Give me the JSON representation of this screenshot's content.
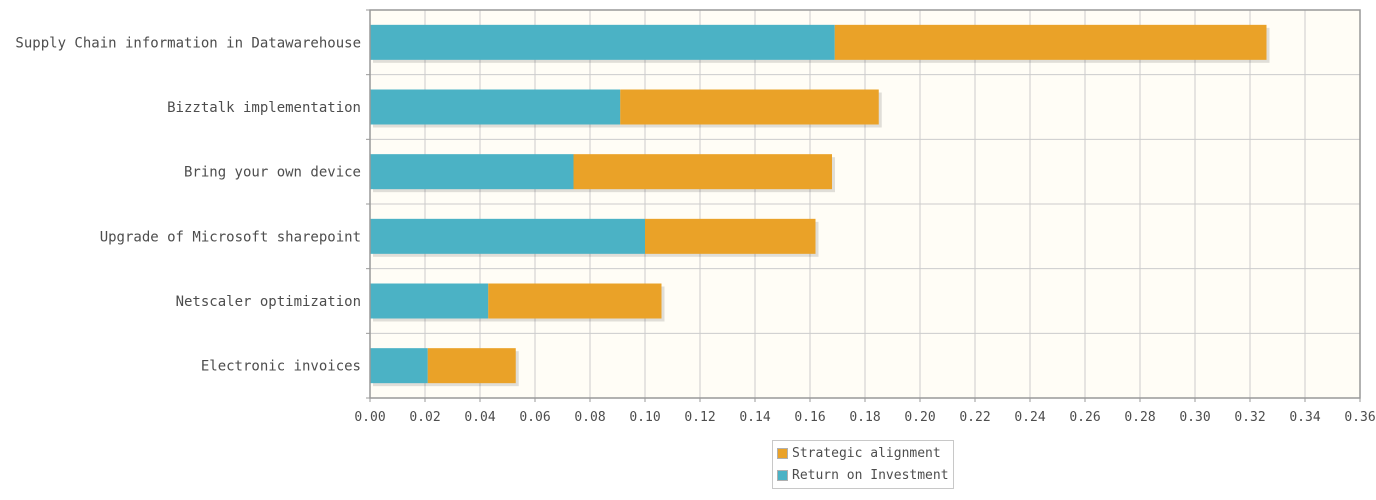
{
  "chart_data": {
    "type": "bar",
    "orientation": "horizontal",
    "stacked": true,
    "categories": [
      "Supply Chain information in Datawarehouse",
      "Bizztalk implementation",
      "Bring your own device",
      "Upgrade of Microsoft sharepoint",
      "Netscaler optimization",
      "Electronic invoices"
    ],
    "series": [
      {
        "name": "Return on Investment",
        "color": "#4bb2c5",
        "values": [
          0.169,
          0.091,
          0.074,
          0.1,
          0.043,
          0.021
        ]
      },
      {
        "name": "Strategic alignment",
        "color": "#eaa228",
        "values": [
          0.157,
          0.094,
          0.094,
          0.062,
          0.063,
          0.032
        ]
      }
    ],
    "xlim": [
      0,
      0.36
    ],
    "x_ticks": [
      "0.00",
      "0.02",
      "0.04",
      "0.06",
      "0.08",
      "0.10",
      "0.12",
      "0.14",
      "0.16",
      "0.18",
      "0.20",
      "0.22",
      "0.24",
      "0.26",
      "0.28",
      "0.30",
      "0.32",
      "0.34",
      "0.36"
    ],
    "grid": true,
    "legend_position": "bottom-center",
    "legend_order": [
      "Strategic alignment",
      "Return on Investment"
    ],
    "plot_background": "#fffdf6"
  }
}
